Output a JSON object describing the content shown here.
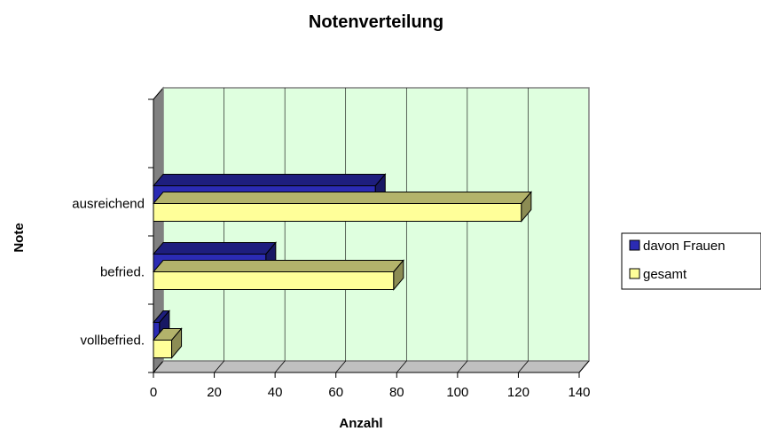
{
  "chart_data": {
    "type": "bar",
    "orientation": "horizontal",
    "style": "3d",
    "title": "Notenverteilung",
    "xlabel": "Anzahl",
    "ylabel": "Note",
    "categories": [
      "vollbefried.",
      "befried.",
      "ausreichend"
    ],
    "series": [
      {
        "name": "davon Frauen",
        "color": "#2b2bb4",
        "values": [
          2,
          37,
          73
        ]
      },
      {
        "name": "gesamt",
        "color": "#ffff99",
        "values": [
          6,
          79,
          121
        ]
      }
    ],
    "xlim": [
      0,
      140
    ],
    "xticks": [
      0,
      20,
      40,
      60,
      80,
      100,
      120,
      140
    ],
    "grid": true,
    "plot_background": "#dfffdf",
    "legend_position": "right"
  }
}
